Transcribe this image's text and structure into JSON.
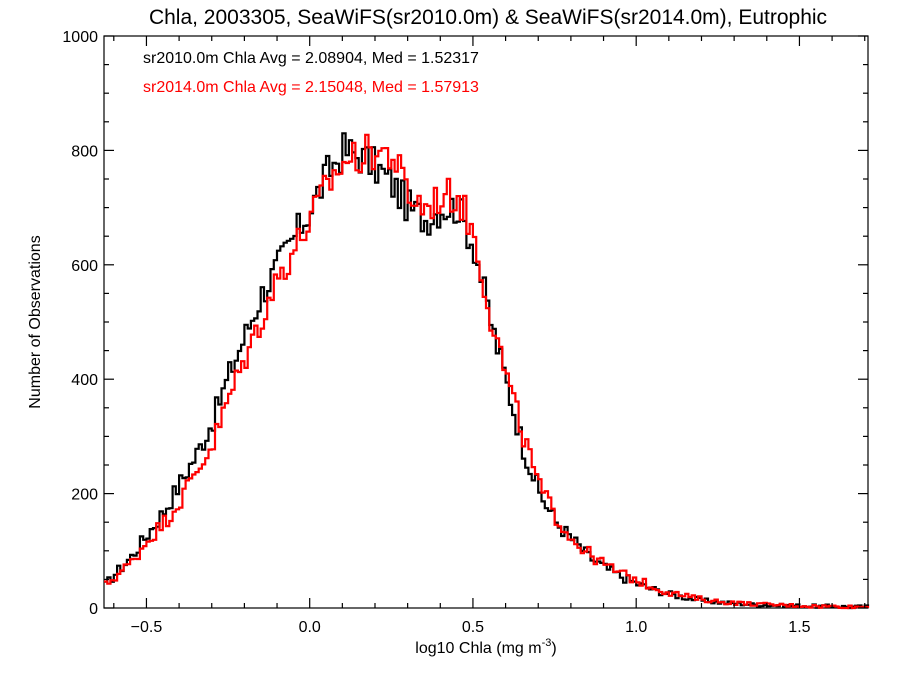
{
  "chart_data": {
    "type": "line",
    "title": "Chla, 2003305, SeaWiFS(sr2010.0m) & SeaWiFS(sr2014.0m), Eutrophic",
    "xlabel": "log10 Chla (mg m",
    "xlabel_sup": "-3",
    "xlabel_suffix": ")",
    "ylabel": "Number of Observations",
    "xlim": [
      -0.63,
      1.71
    ],
    "ylim": [
      0,
      1000
    ],
    "x_ticks": [
      -0.5,
      0.0,
      0.5,
      1.0,
      1.5
    ],
    "x_tick_labels": [
      "−0.5",
      "0.0",
      "0.5",
      "1.0",
      "1.5"
    ],
    "y_ticks": [
      0,
      200,
      400,
      600,
      800,
      1000
    ],
    "y_tick_labels": [
      "0",
      "200",
      "400",
      "600",
      "800",
      "1000"
    ],
    "annotations": [
      {
        "text": "sr2010.0m Chla Avg = 2.08904, Med = 1.52317",
        "color": "#000000"
      },
      {
        "text": "sr2014.0m Chla Avg = 2.15048, Med = 1.57913",
        "color": "#ff0000"
      }
    ],
    "series": [
      {
        "color": "#000000",
        "x": [
          -0.63,
          -0.6,
          -0.55,
          -0.5,
          -0.45,
          -0.4,
          -0.35,
          -0.3,
          -0.25,
          -0.2,
          -0.15,
          -0.1,
          -0.05,
          0.0,
          0.05,
          0.1,
          0.15,
          0.2,
          0.25,
          0.3,
          0.35,
          0.4,
          0.45,
          0.5,
          0.55,
          0.6,
          0.65,
          0.7,
          0.75,
          0.8,
          0.85,
          0.9,
          0.95,
          1.0,
          1.05,
          1.1,
          1.15,
          1.2,
          1.25,
          1.3,
          1.35,
          1.4,
          1.45,
          1.5,
          1.55,
          1.6,
          1.65,
          1.71
        ],
        "y": [
          40,
          60,
          90,
          130,
          170,
          220,
          270,
          330,
          410,
          480,
          550,
          600,
          650,
          700,
          760,
          800,
          790,
          770,
          740,
          700,
          680,
          700,
          700,
          630,
          500,
          390,
          280,
          200,
          150,
          120,
          90,
          70,
          55,
          42,
          32,
          24,
          18,
          13,
          10,
          8,
          6,
          5,
          4,
          4,
          3,
          3,
          2,
          2
        ]
      },
      {
        "color": "#ff0000",
        "x": [
          -0.63,
          -0.6,
          -0.55,
          -0.5,
          -0.45,
          -0.4,
          -0.35,
          -0.3,
          -0.25,
          -0.2,
          -0.15,
          -0.1,
          -0.05,
          0.0,
          0.05,
          0.1,
          0.15,
          0.2,
          0.25,
          0.3,
          0.35,
          0.4,
          0.45,
          0.5,
          0.55,
          0.6,
          0.65,
          0.7,
          0.75,
          0.8,
          0.85,
          0.9,
          0.95,
          1.0,
          1.05,
          1.1,
          1.15,
          1.2,
          1.25,
          1.3,
          1.35,
          1.4,
          1.45,
          1.5,
          1.55,
          1.6,
          1.65,
          1.71
        ],
        "y": [
          40,
          55,
          80,
          120,
          150,
          190,
          240,
          290,
          370,
          440,
          510,
          580,
          630,
          680,
          740,
          780,
          790,
          800,
          790,
          720,
          700,
          720,
          720,
          650,
          510,
          400,
          300,
          210,
          160,
          120,
          95,
          75,
          60,
          48,
          36,
          27,
          20,
          15,
          11,
          9,
          7,
          6,
          5,
          4,
          3,
          3,
          2,
          2
        ]
      }
    ]
  }
}
